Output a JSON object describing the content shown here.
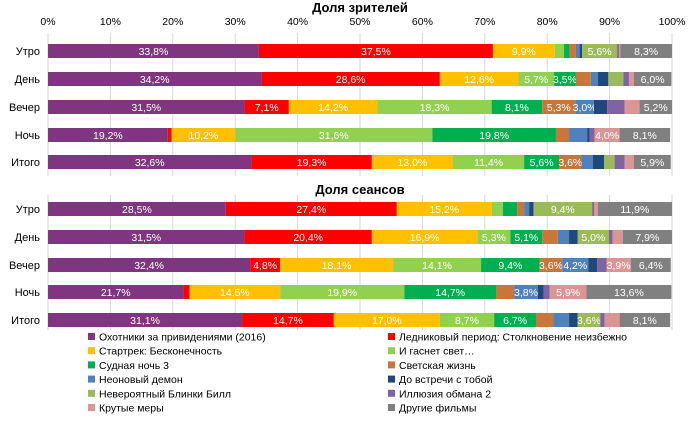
{
  "chart_data": [
    {
      "type": "bar",
      "stacked": "percent",
      "orientation": "horizontal",
      "title": "Доля зрителей",
      "xlim": [
        0,
        100
      ],
      "xticks": [
        "0%",
        "10%",
        "20%",
        "30%",
        "40%",
        "50%",
        "60%",
        "70%",
        "80%",
        "90%",
        "100%"
      ],
      "grid": true,
      "categories": [
        "Утро",
        "День",
        "Вечер",
        "Ночь",
        "Итого"
      ],
      "series_values": [
        [
          33.8,
          37.5,
          9.9,
          1.5,
          0.9,
          1.0,
          0.6,
          0.4,
          5.6,
          0.3,
          0.2,
          8.3
        ],
        [
          34.2,
          28.6,
          12.6,
          5.7,
          3.5,
          2.4,
          1.1,
          1.7,
          2.4,
          0.9,
          0.8,
          6.0
        ],
        [
          31.5,
          7.1,
          14.2,
          18.3,
          8.1,
          5.3,
          3.0,
          2.1,
          0.0,
          2.8,
          2.4,
          5.2
        ],
        [
          19.2,
          0.6,
          10.2,
          31.6,
          19.8,
          2.1,
          2.9,
          0.4,
          0.0,
          0.8,
          4.0,
          8.1
        ],
        [
          32.6,
          19.3,
          13.0,
          11.4,
          5.6,
          3.6,
          1.8,
          1.8,
          1.7,
          1.6,
          1.5,
          5.9
        ]
      ]
    },
    {
      "type": "bar",
      "stacked": "percent",
      "orientation": "horizontal",
      "title": "Доля сеансов",
      "xlim": [
        0,
        100
      ],
      "grid": true,
      "categories": [
        "Утро",
        "День",
        "Вечер",
        "Ночь",
        "Итого"
      ],
      "series_values": [
        [
          28.5,
          27.4,
          15.2,
          1.8,
          2.3,
          1.1,
          0.8,
          0.7,
          9.4,
          0.3,
          0.6,
          11.9
        ],
        [
          31.5,
          20.4,
          16.9,
          5.3,
          5.1,
          2.5,
          1.8,
          1.4,
          5.0,
          0.6,
          1.6,
          7.9
        ],
        [
          32.4,
          4.8,
          18.1,
          14.1,
          9.4,
          3.6,
          4.2,
          1.4,
          0.0,
          1.5,
          3.9,
          6.4
        ],
        [
          21.7,
          1.0,
          14.5,
          19.9,
          14.7,
          2.9,
          3.8,
          0.9,
          0.0,
          1.0,
          5.9,
          13.6
        ],
        [
          31.1,
          14.7,
          17.0,
          8.7,
          6.7,
          2.8,
          2.5,
          1.4,
          3.6,
          0.7,
          2.4,
          8.1
        ]
      ]
    }
  ],
  "legend": {
    "placement": "bottom",
    "series": [
      {
        "name": "Охотники за привидениями (2016)",
        "color": "#7F3580"
      },
      {
        "name": "Ледниковый период: Столкновение неизбежно",
        "color": "#FF0000"
      },
      {
        "name": "Стартрек: Бесконечность",
        "color": "#FFC000"
      },
      {
        "name": "И гаснет свет…",
        "color": "#92D050"
      },
      {
        "name": "Судная ночь 3",
        "color": "#00B050"
      },
      {
        "name": "Светская жизнь",
        "color": "#C8763A"
      },
      {
        "name": "Неоновый демон",
        "color": "#4F81BD"
      },
      {
        "name": "До встречи с тобой",
        "color": "#1F497D"
      },
      {
        "name": "Невероятный Блинки Билл",
        "color": "#9BBB59"
      },
      {
        "name": "Иллюзия обмана 2",
        "color": "#8064A2"
      },
      {
        "name": "Крутые меры",
        "color": "#DA9694"
      },
      {
        "name": "Другие фильмы",
        "color": "#808080"
      }
    ]
  }
}
